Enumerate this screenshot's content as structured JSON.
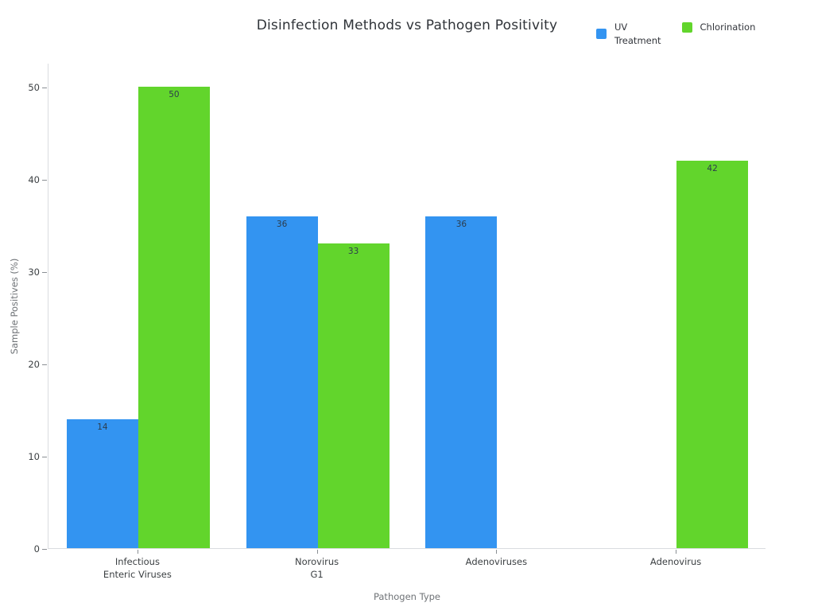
{
  "title": "Disinfection Methods vs Pathogen Positivity",
  "legend": {
    "position": "top-right",
    "items": [
      {
        "label": "UV\nTreatment",
        "series": "UV Treatment",
        "color": "#3394f1",
        "swatch": "square"
      },
      {
        "label": "Chlorination",
        "series": "Chlorination",
        "color": "#62d52c",
        "swatch": "square"
      }
    ]
  },
  "chart_data": {
    "type": "bar",
    "title": "Disinfection Methods vs Pathogen Positivity",
    "xlabel": "Pathogen Type",
    "ylabel": "Sample Positives (%)",
    "categories": [
      "Infectious\nEnteric Viruses",
      "Norovirus\nG1",
      "Adenoviruses",
      "Adenovirus"
    ],
    "series": [
      {
        "name": "UV Treatment",
        "color": "#3394f1",
        "values": [
          14,
          36,
          36,
          null
        ]
      },
      {
        "name": "Chlorination",
        "color": "#62d52c",
        "values": [
          50,
          33,
          null,
          42
        ]
      }
    ],
    "bar_value_labels": [
      {
        "series": "UV Treatment",
        "labels": [
          "14",
          "36",
          "36",
          null
        ]
      },
      {
        "series": "Chlorination",
        "labels": [
          "50",
          "33",
          null,
          "42"
        ]
      }
    ],
    "yticks": [
      0,
      10,
      20,
      30,
      40,
      50
    ],
    "ylim": [
      0,
      52.6
    ],
    "grid": false,
    "background": "#ffffff",
    "legend_position": "top-right"
  }
}
